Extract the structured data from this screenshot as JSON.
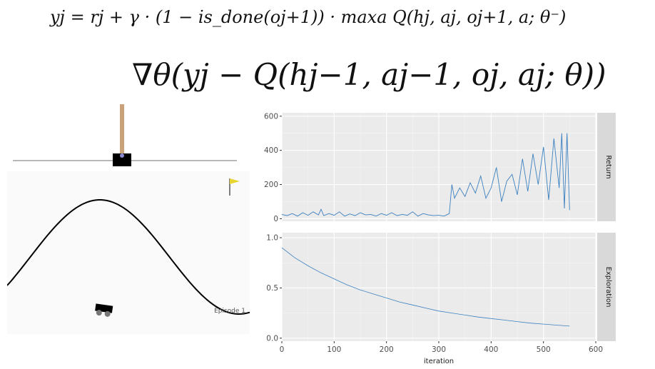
{
  "equations": {
    "target": "yj = rj + γ · (1 − is_done(oj+1)) · maxa Q(hj, aj, oj+1, a; θ⁻)",
    "gradient": "∇θ(yj − Q(hj−1, aj−1, oj, aj; θ))"
  },
  "environments": {
    "episode_label": "Episode 1"
  },
  "chart_data": [
    {
      "type": "line",
      "facet": "Return",
      "xlabel": "",
      "ylabel": "",
      "xlim": [
        0,
        600
      ],
      "ylim": [
        -15,
        620
      ],
      "xticks": [
        0,
        100,
        200,
        300,
        400,
        500,
        600
      ],
      "yticks": [
        0,
        200,
        400,
        600
      ],
      "color": "#3b80c0",
      "grid": true,
      "series": [
        {
          "x": [
            0,
            10,
            20,
            30,
            40,
            50,
            60,
            70,
            75,
            80,
            90,
            100,
            110,
            120,
            130,
            140,
            150,
            160,
            170,
            180,
            190,
            200,
            210,
            220,
            230,
            240,
            250,
            260,
            270,
            280,
            290,
            300,
            310,
            320,
            325,
            330,
            340,
            350,
            360,
            370,
            380,
            390,
            400,
            410,
            420,
            430,
            440,
            450,
            460,
            470,
            480,
            490,
            500,
            510,
            520,
            530,
            535,
            540,
            545,
            550
          ],
          "y": [
            25,
            18,
            30,
            15,
            35,
            20,
            40,
            22,
            55,
            18,
            30,
            20,
            40,
            15,
            28,
            18,
            35,
            22,
            25,
            15,
            30,
            20,
            35,
            18,
            25,
            20,
            40,
            15,
            30,
            22,
            18,
            20,
            15,
            30,
            200,
            120,
            180,
            130,
            210,
            150,
            250,
            120,
            180,
            300,
            100,
            220,
            260,
            140,
            350,
            160,
            380,
            200,
            420,
            110,
            470,
            180,
            500,
            60,
            500,
            50
          ]
        }
      ]
    },
    {
      "type": "line",
      "facet": "Exploration",
      "xlabel": "iteration",
      "ylabel": "",
      "xlim": [
        0,
        600
      ],
      "ylim": [
        -0.03,
        1.05
      ],
      "xticks": [
        0,
        100,
        200,
        300,
        400,
        500,
        600
      ],
      "yticks": [
        0.0,
        0.5,
        1.0
      ],
      "color": "#3b80c0",
      "grid": true,
      "series": [
        {
          "x": [
            0,
            25,
            50,
            75,
            100,
            125,
            150,
            175,
            200,
            225,
            250,
            275,
            300,
            325,
            350,
            375,
            400,
            425,
            450,
            475,
            500,
            525,
            550
          ],
          "y": [
            0.9,
            0.8,
            0.72,
            0.65,
            0.59,
            0.53,
            0.48,
            0.44,
            0.4,
            0.36,
            0.33,
            0.3,
            0.27,
            0.25,
            0.23,
            0.21,
            0.195,
            0.18,
            0.165,
            0.15,
            0.14,
            0.13,
            0.12
          ]
        }
      ]
    }
  ]
}
